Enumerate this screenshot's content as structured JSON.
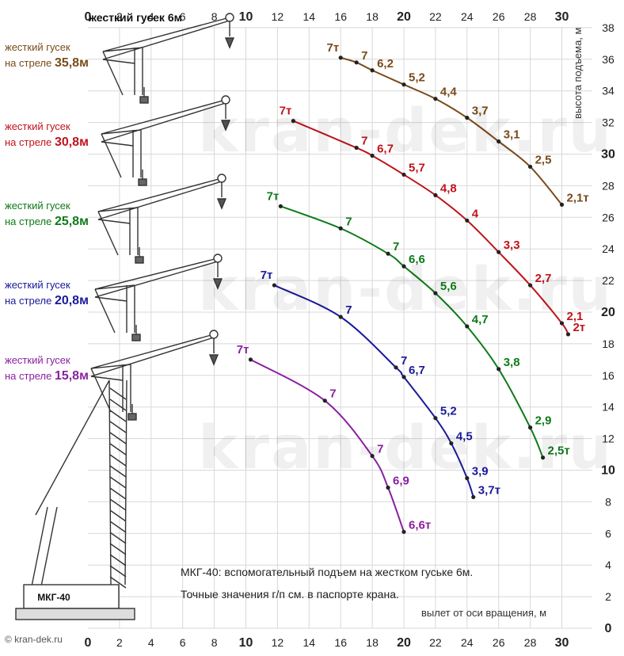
{
  "chart_data": {
    "type": "line",
    "title": "",
    "xlabel": "вылет от оси вращения, м",
    "ylabel": "высота подъема, м",
    "xlim": [
      0,
      31
    ],
    "ylim": [
      0,
      38
    ],
    "x_ticks": [
      0,
      2,
      4,
      6,
      8,
      10,
      12,
      14,
      16,
      18,
      20,
      22,
      24,
      26,
      28,
      30
    ],
    "y_ticks": [
      0,
      2,
      4,
      6,
      8,
      10,
      12,
      14,
      16,
      18,
      20,
      22,
      24,
      26,
      28,
      30,
      32,
      34,
      36,
      38
    ],
    "grid": true,
    "series": [
      {
        "name": "жесткий гусек на стреле 35,8м",
        "color": "#7a4a1a",
        "points": [
          {
            "x": 16,
            "y": 36.1,
            "label": "7т"
          },
          {
            "x": 17,
            "y": 35.8,
            "label": "7"
          },
          {
            "x": 18,
            "y": 35.3,
            "label": "6,2"
          },
          {
            "x": 20,
            "y": 34.4,
            "label": "5,2"
          },
          {
            "x": 22,
            "y": 33.5,
            "label": "4,4"
          },
          {
            "x": 24,
            "y": 32.3,
            "label": "3,7"
          },
          {
            "x": 26,
            "y": 30.8,
            "label": "3,1"
          },
          {
            "x": 28,
            "y": 29.2,
            "label": "2,5"
          },
          {
            "x": 30,
            "y": 26.8,
            "label": "2,1т"
          }
        ]
      },
      {
        "name": "жесткий гусек на стреле 30,8м",
        "color": "#c0141c",
        "points": [
          {
            "x": 13,
            "y": 32.1,
            "label": "7т"
          },
          {
            "x": 17,
            "y": 30.4,
            "label": "7"
          },
          {
            "x": 18,
            "y": 29.9,
            "label": "6,7"
          },
          {
            "x": 20,
            "y": 28.7,
            "label": "5,7"
          },
          {
            "x": 22,
            "y": 27.4,
            "label": "4,8"
          },
          {
            "x": 24,
            "y": 25.8,
            "label": "4"
          },
          {
            "x": 26,
            "y": 23.8,
            "label": "3,3"
          },
          {
            "x": 28,
            "y": 21.7,
            "label": "2,7"
          },
          {
            "x": 30,
            "y": 19.3,
            "label": "2,1"
          },
          {
            "x": 30.4,
            "y": 18.6,
            "label": "2т"
          }
        ]
      },
      {
        "name": "жесткий гусек на стреле 25,8м",
        "color": "#0e7a18",
        "points": [
          {
            "x": 12.2,
            "y": 26.7,
            "label": "7т"
          },
          {
            "x": 16,
            "y": 25.3,
            "label": "7"
          },
          {
            "x": 19,
            "y": 23.7,
            "label": "7"
          },
          {
            "x": 20,
            "y": 22.9,
            "label": "6,6"
          },
          {
            "x": 22,
            "y": 21.2,
            "label": "5,6"
          },
          {
            "x": 24,
            "y": 19.1,
            "label": "4,7"
          },
          {
            "x": 26,
            "y": 16.4,
            "label": "3,8"
          },
          {
            "x": 28,
            "y": 12.7,
            "label": "2,9"
          },
          {
            "x": 28.8,
            "y": 10.8,
            "label": "2,5т"
          }
        ]
      },
      {
        "name": "жесткий гусек на стреле 20,8м",
        "color": "#1a1a9a",
        "points": [
          {
            "x": 11.8,
            "y": 21.7,
            "label": "7т"
          },
          {
            "x": 16,
            "y": 19.7,
            "label": "7"
          },
          {
            "x": 19.5,
            "y": 16.5,
            "label": "7"
          },
          {
            "x": 20,
            "y": 15.9,
            "label": "6,7"
          },
          {
            "x": 22,
            "y": 13.3,
            "label": "5,2"
          },
          {
            "x": 23,
            "y": 11.7,
            "label": "4,5"
          },
          {
            "x": 24,
            "y": 9.5,
            "label": "3,9"
          },
          {
            "x": 24.4,
            "y": 8.3,
            "label": "3,7т"
          }
        ]
      },
      {
        "name": "жесткий гусек на стреле 15,8м",
        "color": "#8a1fa0",
        "points": [
          {
            "x": 10.3,
            "y": 17.0,
            "label": "7т"
          },
          {
            "x": 15,
            "y": 14.4,
            "label": "7"
          },
          {
            "x": 18,
            "y": 10.9,
            "label": "7"
          },
          {
            "x": 19,
            "y": 8.9,
            "label": "6,9"
          },
          {
            "x": 20,
            "y": 6.1,
            "label": "6,6т"
          }
        ]
      }
    ],
    "jib_label": "жесткий гусек 6м",
    "crane_model": "МКГ-40",
    "note_lines": [
      "МКГ-40: вспомогательный подъем на жестком гуське 6м.",
      "Точные значения г/п см. в паспорте крана."
    ],
    "watermark": "kran-dek.ru",
    "copyright": "© kran-dek.ru"
  },
  "legend": [
    {
      "line1": "жесткий гусек",
      "line2_prefix": "на стреле ",
      "line2_value": "35,8м"
    },
    {
      "line1": "жесткий гусек",
      "line2_prefix": "на стреле ",
      "line2_value": "30,8м"
    },
    {
      "line1": "жесткий гусек",
      "line2_prefix": "на стреле ",
      "line2_value": "25,8м"
    },
    {
      "line1": "жесткий гусек",
      "line2_prefix": "на стреле ",
      "line2_value": "20,8м"
    },
    {
      "line1": "жесткий гусек",
      "line2_prefix": "на стреле ",
      "line2_value": "15,8м"
    }
  ],
  "colors": {
    "grid": "#d8d8d8",
    "axis_text": "#222222"
  }
}
